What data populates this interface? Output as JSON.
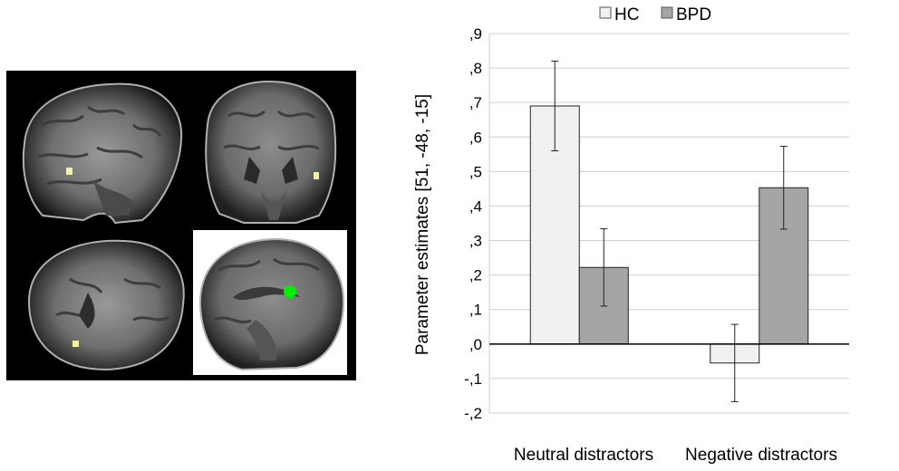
{
  "chart_data": {
    "type": "bar",
    "categories": [
      "Neutral distractors",
      "Negative distractors"
    ],
    "series": [
      {
        "name": "HC",
        "color": "#f1f1f1",
        "values": [
          0.69,
          -0.055
        ],
        "errors": [
          0.13,
          0.112
        ]
      },
      {
        "name": "BPD",
        "color": "#a5a5a5",
        "values": [
          0.222,
          0.453
        ],
        "errors": [
          0.112,
          0.12
        ]
      }
    ],
    "ylabel": "Parameter estimates [51, -48, -15]",
    "ylim": [
      -0.2,
      0.9
    ],
    "yticks": [
      ",9",
      ",8",
      ",7",
      ",6",
      ",5",
      ",4",
      ",3",
      ",2",
      ",1",
      ",0",
      "-,1",
      "-,2"
    ],
    "grid": true,
    "legend_position": "top"
  },
  "brain_images": {
    "highlight_color": "#00ee00",
    "marker_color": "#f3f3a8",
    "views": [
      "sagittal-lateral",
      "coronal",
      "axial",
      "sagittal-medial"
    ]
  }
}
